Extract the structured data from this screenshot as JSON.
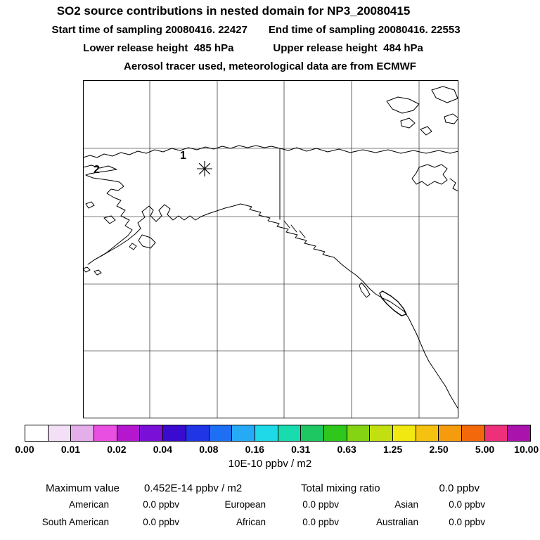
{
  "header": {
    "title": "SO2 source contributions in nested domain for NP3_20080415",
    "line2_left": "Start time of sampling 20080416. 22427",
    "line2_right": "End time of sampling 20080416. 22553",
    "line3_left": "Lower release height  485 hPa",
    "line3_right": "Upper release height  484 hPa",
    "line4": "Aerosol tracer used, meteorological data are from ECMWF"
  },
  "map": {
    "marker1_label": "1",
    "marker2_label": "2",
    "region": "Alaska / Bering Sea / northwest North America"
  },
  "colorbar": {
    "tick_labels": [
      "0.00",
      "0.01",
      "0.02",
      "0.04",
      "0.08",
      "0.16",
      "0.31",
      "0.63",
      "1.25",
      "2.50",
      "5.00",
      "10.00"
    ],
    "unit_label": "10E-10 ppbv / m2",
    "colors": [
      "#ffffff",
      "#f3e0f6",
      "#e3aee9",
      "#e94fe0",
      "#b517cf",
      "#7a10d8",
      "#3a0ad0",
      "#1f35e6",
      "#1f6ff5",
      "#27aaf5",
      "#1fd8e8",
      "#19dcae",
      "#1ec761",
      "#2fc71c",
      "#84d414",
      "#c2e011",
      "#f2e811",
      "#f4c20f",
      "#f59b0e",
      "#f4680c",
      "#ee2f7a",
      "#aa14ac"
    ]
  },
  "stats": {
    "max_label": "Maximum value",
    "max_value": "0.452E-14 ppbv / m2",
    "total_label": "Total mixing ratio",
    "total_value": "0.0 ppbv",
    "regions": [
      {
        "name": "American",
        "value": "0.0 ppbv"
      },
      {
        "name": "European",
        "value": "0.0 ppbv"
      },
      {
        "name": "Asian",
        "value": "0.0 ppbv"
      },
      {
        "name": "South American",
        "value": "0.0 ppbv"
      },
      {
        "name": "African",
        "value": "0.0 ppbv"
      },
      {
        "name": "Australian",
        "value": "0.0 ppbv"
      }
    ]
  },
  "chart_data": {
    "type": "heatmap",
    "title": "SO2 source contributions in nested domain for NP3_20080415",
    "subtitle": [
      "Start time of sampling 20080416. 22427",
      "End time of sampling 20080416. 22553",
      "Lower release height 485 hPa",
      "Upper release height 484 hPa",
      "Aerosol tracer used, meteorological data are from ECMWF"
    ],
    "map_region": "Alaska, Bering Sea, Gulf of Alaska, western Canada and US west coast",
    "colorbar": {
      "unit": "10E-10 ppbv / m2",
      "tick_values": [
        0.0,
        0.01,
        0.02,
        0.04,
        0.08,
        0.16,
        0.31,
        0.63,
        1.25,
        2.5,
        5.0,
        10.0
      ],
      "scale": "logarithmic (factor-of-2 steps)",
      "legend_position": "bottom"
    },
    "values": "no shaded cells visible; concentration field is effectively zero everywhere",
    "maximum_value": "0.452E-14 ppbv / m2",
    "total_mixing_ratio": "0.0 ppbv",
    "source_contributions_ppbv": {
      "American": 0.0,
      "European": 0.0,
      "Asian": 0.0,
      "South American": 0.0,
      "African": 0.0,
      "Australian": 0.0
    },
    "release_markers": [
      {
        "label": "1",
        "note": "numbered point on map, interior Alaska"
      },
      {
        "label": "2",
        "note": "numbered point on map, near west edge"
      },
      {
        "symbol": "asterisk",
        "note": "release/receptor star symbol near marker 1"
      }
    ],
    "grid": "on"
  }
}
